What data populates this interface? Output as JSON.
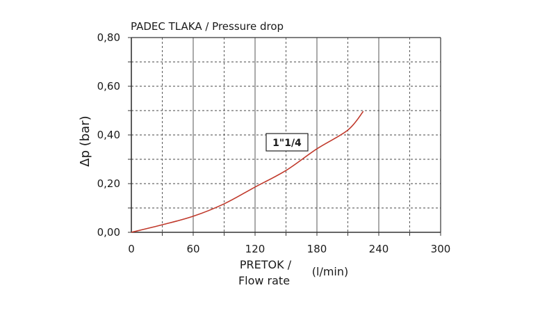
{
  "chart_data": {
    "type": "line",
    "title": "PADEC TLAKA / Pressure drop",
    "xlabel": "PRETOK / Flow rate",
    "xlabel_line1": "PRETOK /",
    "xlabel_line2": "Flow rate",
    "xunit": "(l/min)",
    "ylabel": "Δp  (bar)",
    "xlim": [
      0,
      300
    ],
    "ylim": [
      0,
      0.8
    ],
    "x_ticks": [
      "0",
      "60",
      "120",
      "180",
      "240",
      "300"
    ],
    "y_ticks": [
      "0,00",
      "0,20",
      "0,40",
      "0,60",
      "0,80"
    ],
    "grid": true,
    "series": [
      {
        "name": "1\"1/4",
        "color": "#c0392b",
        "x": [
          0,
          30,
          60,
          90,
          120,
          150,
          180,
          210,
          225
        ],
        "y": [
          0,
          0.031,
          0.066,
          0.117,
          0.186,
          0.254,
          0.343,
          0.42,
          0.497
        ]
      }
    ],
    "annotation": "1\"1/4"
  }
}
